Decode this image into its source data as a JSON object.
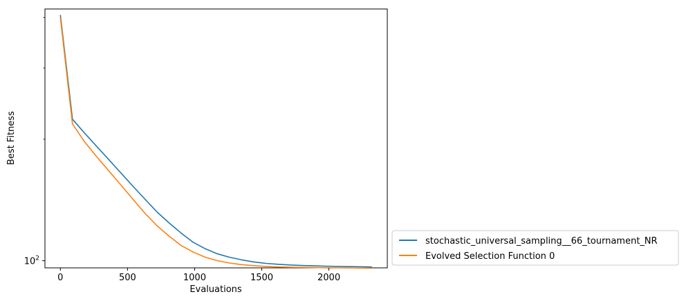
{
  "chart_data": {
    "type": "line",
    "xlabel": "Evaluations",
    "ylabel": "Best Fitness",
    "xlim": [
      -115,
      2435
    ],
    "ylim": [
      96,
      420
    ],
    "yscale": "log",
    "grid": false,
    "legend_placement": "outside-bottom-right",
    "x_ticks": [
      0,
      500,
      1000,
      1500,
      2000
    ],
    "x_tick_labels": [
      "0",
      "500",
      "1000",
      "1500",
      "2000"
    ],
    "y_ticks": [
      100
    ],
    "y_tick_labels": [
      "10",
      "2"
    ],
    "series": [
      {
        "name": "stochastic_universal_sampling__66_tournament_NR",
        "color": "#1f77b4",
        "x": [
          0,
          90,
          180,
          270,
          360,
          450,
          540,
          630,
          720,
          810,
          900,
          990,
          1080,
          1170,
          1260,
          1350,
          1440,
          1530,
          1620,
          1710,
          1800,
          1890,
          1980,
          2070,
          2160,
          2250,
          2320
        ],
        "y": [
          406,
          224,
          207,
          192,
          178,
          165,
          153,
          142,
          132,
          124,
          117,
          111,
          107,
          104,
          102,
          100.5,
          99.3,
          98.5,
          98.0,
          97.6,
          97.3,
          97.1,
          96.9,
          96.8,
          96.7,
          96.6,
          96.5
        ]
      },
      {
        "name": "Evolved Selection Function 0",
        "color": "#ff7f0e",
        "x": [
          0,
          90,
          180,
          270,
          360,
          450,
          540,
          630,
          720,
          810,
          900,
          990,
          1080,
          1170,
          1260,
          1350,
          1440,
          1530,
          1620,
          1710,
          1800,
          1890,
          1980,
          2070,
          2160,
          2250,
          2320
        ],
        "y": [
          400,
          218,
          197,
          181,
          167,
          154,
          142,
          131,
          122,
          115,
          109,
          105,
          102,
          100,
          98.7,
          97.8,
          97.2,
          96.8,
          96.5,
          96.35,
          96.25,
          96.15,
          96.05,
          96.0,
          95.95,
          95.9,
          95.85
        ]
      }
    ]
  }
}
